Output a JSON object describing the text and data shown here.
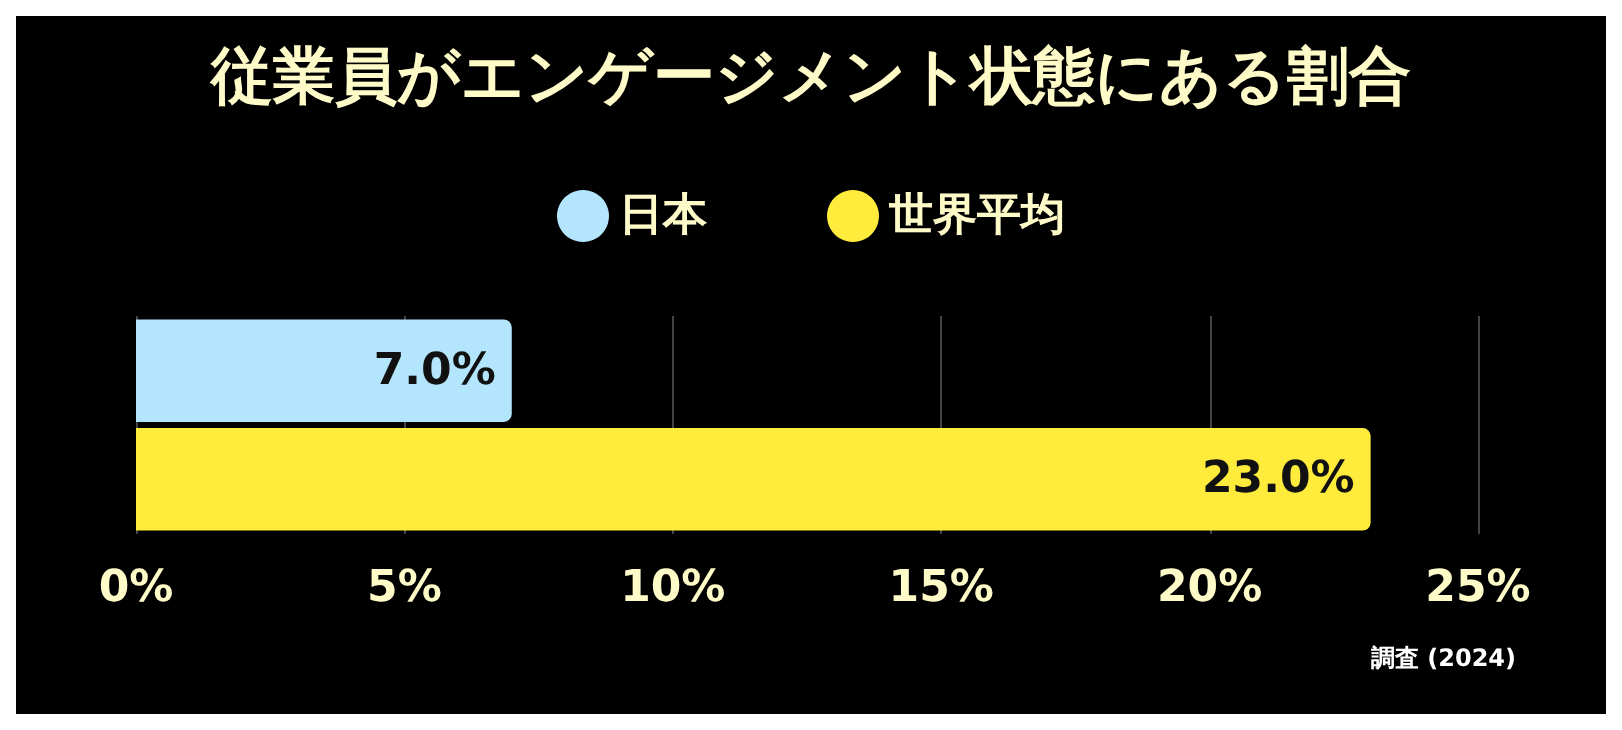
{
  "chart_data": {
    "type": "bar",
    "orientation": "horizontal",
    "title": "従業員がエンゲージメント状態にある割合",
    "categories": [
      null
    ],
    "series": [
      {
        "name": "日本",
        "color": "#b3e5fc",
        "values": [
          7.0
        ],
        "value_labels": [
          "7.0%"
        ]
      },
      {
        "name": "世界平均",
        "color": "#ffeb3b",
        "values": [
          23.0
        ],
        "value_labels": [
          "23.0%"
        ]
      }
    ],
    "xlim": [
      0,
      25
    ],
    "xticks": [
      {
        "value": 0,
        "label": "0%"
      },
      {
        "value": 5,
        "label": "5%"
      },
      {
        "value": 10,
        "label": "10%"
      },
      {
        "value": 15,
        "label": "15%"
      },
      {
        "value": 20,
        "label": "20%"
      },
      {
        "value": 25,
        "label": "25%"
      }
    ],
    "grid": "x",
    "legend": "top",
    "annotations": [
      "調査 (2024)"
    ]
  }
}
